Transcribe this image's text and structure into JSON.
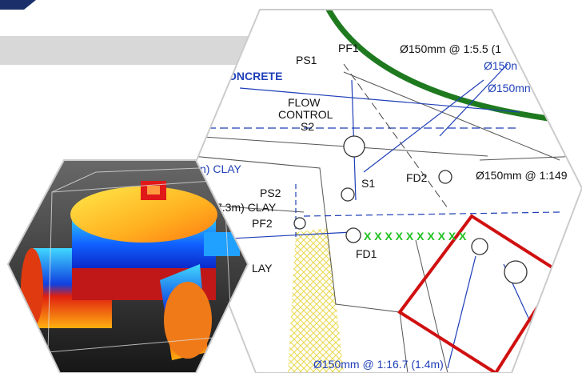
{
  "drawing": {
    "labels": [
      "PF1",
      "PS1",
      "Ø150mm @ 1:5.5 (1",
      "Ø150n",
      "Ø150mn",
      "ONCRETE",
      "FLOW",
      "CONTROL",
      "S2",
      "n) CLAY",
      "S1",
      "FD2",
      "Ø150mm @ 1:149",
      "PS2",
      "7.3m) CLAY",
      "PF2",
      "FD1",
      "LAY",
      "Ø150mm @ 1:16.7 (1.4m)"
    ]
  }
}
